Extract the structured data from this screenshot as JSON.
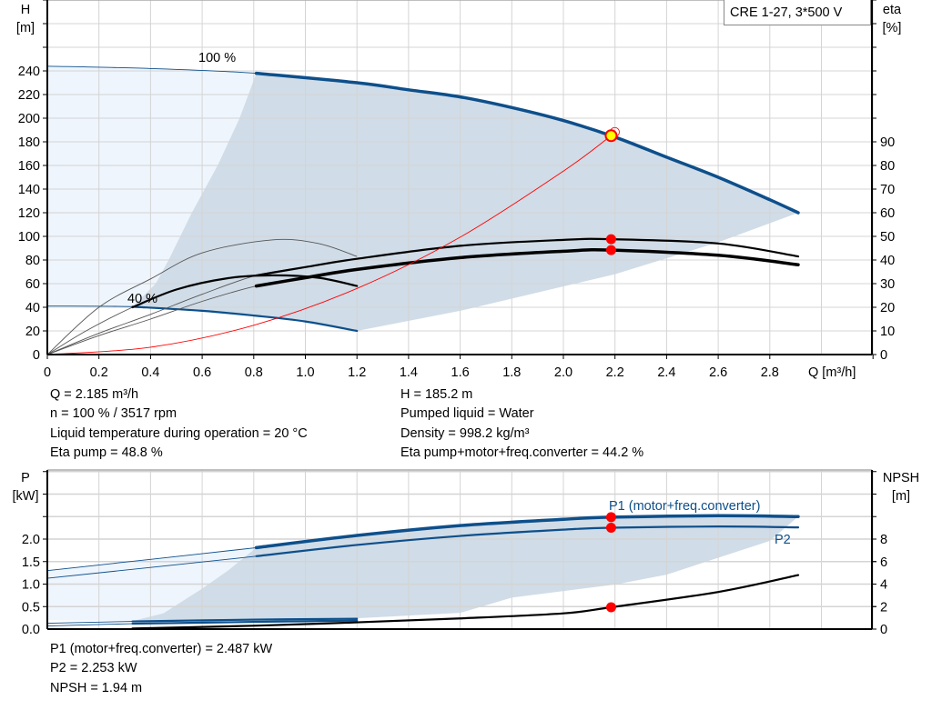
{
  "legend_box": {
    "title": "CRE 1-27, 3*500 V"
  },
  "info_top": {
    "left": [
      "Q = 2.185 m³/h",
      "n = 100 % / 3517 rpm",
      "Liquid temperature during operation = 20 °C",
      "Eta pump = 48.8 %"
    ],
    "right": [
      "H = 185.2 m",
      "Pumped liquid = Water",
      "Density = 998.2 kg/m³",
      "Eta pump+motor+freq.converter = 44.2 %"
    ]
  },
  "info_bottom": [
    "P1 (motor+freq.converter) = 2.487 kW",
    "P2 = 2.253 kW",
    "NPSH = 1.94 m"
  ],
  "colors": {
    "curve_blue": "#0d4f8b",
    "range_dark": "#d0dce7",
    "range_light": "#eef5fd",
    "operating_point": "#ff0000",
    "duty_point_fill": "#ffff00",
    "grid": "#d4d4d4"
  },
  "chart_data": [
    {
      "type": "line",
      "xlabel": "Q [m³/h]",
      "ylabel": [
        "H",
        "[m]"
      ],
      "y2label": [
        "eta",
        "[%]"
      ],
      "xlim": [
        0,
        3.2
      ],
      "ylim": [
        0,
        300
      ],
      "y2lim": [
        0,
        150
      ],
      "grid": true,
      "x_ticks": [
        "0",
        "0.2",
        "0.4",
        "0.6",
        "0.8",
        "1.0",
        "1.2",
        "1.4",
        "1.6",
        "1.8",
        "2.0",
        "2.2",
        "2.4",
        "2.6",
        "2.8"
      ],
      "y_ticks": [
        "0",
        "20",
        "40",
        "60",
        "80",
        "100",
        "120",
        "140",
        "160",
        "180",
        "200",
        "220",
        "240"
      ],
      "y2_ticks": [
        "0",
        "10",
        "20",
        "30",
        "40",
        "50",
        "60",
        "70",
        "80",
        "90"
      ],
      "series": [
        {
          "label": "100 %",
          "axis": "H",
          "color": "#0d4f8b",
          "emphasized_from": 0.81,
          "points": [
            [
              0,
              244
            ],
            [
              0.4,
              242
            ],
            [
              0.81,
              238
            ],
            [
              1.2,
              230
            ],
            [
              1.4,
              224
            ],
            [
              1.6,
              218
            ],
            [
              1.8,
              209
            ],
            [
              2.0,
              198
            ],
            [
              2.2,
              184
            ],
            [
              2.4,
              167
            ],
            [
              2.6,
              150
            ],
            [
              2.8,
              131
            ],
            [
              2.91,
              120
            ]
          ]
        },
        {
          "label": "40 %",
          "axis": "H",
          "color": "#0d4f8b",
          "emphasized_from": 0.33,
          "points": [
            [
              0,
              41
            ],
            [
              0.33,
              40.5
            ],
            [
              0.6,
              37
            ],
            [
              0.8,
              33
            ],
            [
              1.0,
              28
            ],
            [
              1.2,
              20
            ]
          ]
        },
        {
          "axis": "eta",
          "color": "#000000",
          "emphasized_from": 0.81,
          "points": [
            [
              0,
              0
            ],
            [
              0.2,
              9
            ],
            [
              0.4,
              17
            ],
            [
              0.6,
              25.5
            ],
            [
              0.81,
              33.5
            ],
            [
              1.0,
              37
            ],
            [
              1.2,
              40.5
            ],
            [
              1.6,
              46
            ],
            [
              2.0,
              48.5
            ],
            [
              2.185,
              48.8
            ],
            [
              2.6,
              47
            ],
            [
              2.91,
              41.5
            ]
          ]
        },
        {
          "axis": "eta",
          "color": "#000000",
          "emphasized_from": 0.81,
          "points": [
            [
              0,
              0
            ],
            [
              0.2,
              8
            ],
            [
              0.4,
              15
            ],
            [
              0.6,
              22.5
            ],
            [
              0.81,
              29
            ],
            [
              1.0,
              32.5
            ],
            [
              1.2,
              36
            ],
            [
              1.6,
              41
            ],
            [
              2.0,
              43.7
            ],
            [
              2.185,
              44.2
            ],
            [
              2.6,
              42
            ],
            [
              2.91,
              38
            ]
          ]
        },
        {
          "axis": "eta",
          "color": "#000000",
          "points": [
            [
              0,
              0
            ],
            [
              0.2,
              20
            ],
            [
              0.4,
              32
            ],
            [
              0.6,
              43
            ],
            [
              0.87,
              48.5
            ],
            [
              1.05,
              47
            ],
            [
              1.2,
              41.5
            ]
          ]
        },
        {
          "axis": "eta",
          "color": "#000000",
          "emphasized_from": 0.33,
          "points": [
            [
              0,
              0
            ],
            [
              0.15,
              10
            ],
            [
              0.33,
              20
            ],
            [
              0.5,
              27.5
            ],
            [
              0.7,
              32.3
            ],
            [
              0.87,
              33.5
            ],
            [
              1.05,
              32.5
            ],
            [
              1.2,
              29
            ]
          ]
        },
        {
          "axis": "H",
          "color": "#ff0000",
          "points": [
            [
              0,
              0
            ],
            [
              0.4,
              6.2
            ],
            [
              0.8,
              24.8
            ],
            [
              1.2,
              55.9
            ],
            [
              1.6,
              99.3
            ],
            [
              2.0,
              155.2
            ],
            [
              2.185,
              185.2
            ]
          ]
        }
      ],
      "regions": [
        {
          "kind": "light",
          "axis": "H",
          "points": [
            [
              0,
              41
            ],
            [
              0,
              244
            ],
            [
              0.4,
              242
            ],
            [
              0.81,
              238
            ],
            [
              0.745,
              200
            ],
            [
              0.66,
              160
            ],
            [
              0.56,
              120
            ],
            [
              0.47,
              80
            ],
            [
              0.42,
              60
            ],
            [
              0.33,
              40.5
            ]
          ]
        },
        {
          "kind": "dark",
          "axis": "H",
          "points": [
            [
              0.81,
              238
            ],
            [
              1.2,
              230
            ],
            [
              1.4,
              224
            ],
            [
              1.6,
              218
            ],
            [
              1.8,
              209
            ],
            [
              2.0,
              198
            ],
            [
              2.2,
              184
            ],
            [
              2.4,
              167
            ],
            [
              2.6,
              150
            ],
            [
              2.8,
              131
            ],
            [
              2.91,
              120
            ],
            [
              2.6,
              95
            ],
            [
              2.2,
              68
            ],
            [
              1.6,
              37
            ],
            [
              1.2,
              20
            ],
            [
              1.0,
              28
            ],
            [
              0.8,
              33
            ],
            [
              0.6,
              37
            ],
            [
              0.33,
              40.5
            ],
            [
              0.42,
              60
            ],
            [
              0.47,
              80
            ],
            [
              0.56,
              120
            ],
            [
              0.66,
              160
            ],
            [
              0.745,
              200
            ]
          ]
        }
      ],
      "markers": [
        {
          "axis": "H",
          "q": 2.185,
          "value": 185.2,
          "kind": "duty"
        },
        {
          "axis": "eta",
          "q": 2.185,
          "value": 48.8,
          "kind": "dot"
        },
        {
          "axis": "eta",
          "q": 2.185,
          "value": 44.2,
          "kind": "dot"
        }
      ]
    },
    {
      "type": "line",
      "ylabel": [
        "P",
        "[kW]"
      ],
      "y2label": [
        "NPSH",
        "[m]"
      ],
      "xlim": [
        0,
        3.2
      ],
      "ylim": [
        0,
        3.5
      ],
      "y2lim": [
        0,
        14
      ],
      "grid": true,
      "y_ticks": [
        "0.0",
        "0.5",
        "1.0",
        "1.5",
        "2.0"
      ],
      "y2_ticks": [
        "0",
        "2",
        "4",
        "6",
        "8"
      ],
      "series": [
        {
          "label": "P1 (motor+freq.converter)",
          "axis": "P",
          "color": "#0d4f8b",
          "emphasized_from": 0.81,
          "points": [
            [
              0,
              1.3
            ],
            [
              0.4,
              1.55
            ],
            [
              0.81,
              1.81
            ],
            [
              1.2,
              2.08
            ],
            [
              1.6,
              2.3
            ],
            [
              2.0,
              2.44
            ],
            [
              2.185,
              2.487
            ],
            [
              2.6,
              2.52
            ],
            [
              2.91,
              2.5
            ]
          ]
        },
        {
          "label": "P2",
          "axis": "P",
          "color": "#0d4f8b",
          "emphasized_from": 0.81,
          "points": [
            [
              0,
              1.13
            ],
            [
              0.4,
              1.37
            ],
            [
              0.81,
              1.62
            ],
            [
              1.2,
              1.87
            ],
            [
              1.6,
              2.07
            ],
            [
              2.0,
              2.21
            ],
            [
              2.185,
              2.253
            ],
            [
              2.6,
              2.28
            ],
            [
              2.91,
              2.26
            ]
          ]
        },
        {
          "axis": "P",
          "color": "#0d4f8b",
          "emphasized_from": 0.33,
          "points": [
            [
              0,
              0.13
            ],
            [
              0.33,
              0.17
            ],
            [
              0.8,
              0.21
            ],
            [
              1.2,
              0.23
            ]
          ]
        },
        {
          "axis": "P",
          "color": "#0d4f8b",
          "emphasized_from": 0.33,
          "points": [
            [
              0,
              0.07
            ],
            [
              0.33,
              0.12
            ],
            [
              0.8,
              0.16
            ],
            [
              1.2,
              0.19
            ]
          ]
        },
        {
          "axis": "NPSH",
          "color": "#000000",
          "emphasized_from": 0.33,
          "points": [
            [
              0,
              0.02
            ],
            [
              0.33,
              0.05
            ],
            [
              0.8,
              0.3
            ],
            [
              1.2,
              0.6
            ],
            [
              1.6,
              0.95
            ],
            [
              2.0,
              1.4
            ],
            [
              2.185,
              1.94
            ],
            [
              2.6,
              3.3
            ],
            [
              2.91,
              4.8
            ]
          ]
        }
      ],
      "regions": [
        {
          "kind": "light",
          "axis": "P",
          "points": [
            [
              0,
              0.2
            ],
            [
              0,
              1.3
            ],
            [
              0.4,
              1.55
            ],
            [
              0.81,
              1.81
            ],
            [
              0.7,
              1.3
            ],
            [
              0.6,
              0.9
            ],
            [
              0.45,
              0.35
            ],
            [
              0.33,
              0.18
            ]
          ]
        },
        {
          "kind": "dark",
          "axis": "P",
          "points": [
            [
              0.81,
              1.81
            ],
            [
              1.2,
              2.08
            ],
            [
              1.6,
              2.3
            ],
            [
              2.0,
              2.44
            ],
            [
              2.185,
              2.487
            ],
            [
              2.6,
              2.52
            ],
            [
              2.91,
              2.5
            ],
            [
              2.8,
              1.96
            ],
            [
              2.4,
              1.21
            ],
            [
              2.2,
              0.99
            ],
            [
              1.8,
              0.7
            ],
            [
              1.6,
              0.36
            ],
            [
              1.2,
              0.24
            ],
            [
              0.8,
              0.21
            ],
            [
              0.33,
              0.18
            ],
            [
              0.45,
              0.35
            ],
            [
              0.6,
              0.9
            ],
            [
              0.7,
              1.3
            ]
          ]
        }
      ],
      "markers": [
        {
          "axis": "P",
          "q": 2.185,
          "value": 2.487,
          "kind": "dot"
        },
        {
          "axis": "P",
          "q": 2.185,
          "value": 2.253,
          "kind": "dot"
        },
        {
          "axis": "NPSH",
          "q": 2.185,
          "value": 1.94,
          "kind": "dot"
        }
      ]
    }
  ]
}
